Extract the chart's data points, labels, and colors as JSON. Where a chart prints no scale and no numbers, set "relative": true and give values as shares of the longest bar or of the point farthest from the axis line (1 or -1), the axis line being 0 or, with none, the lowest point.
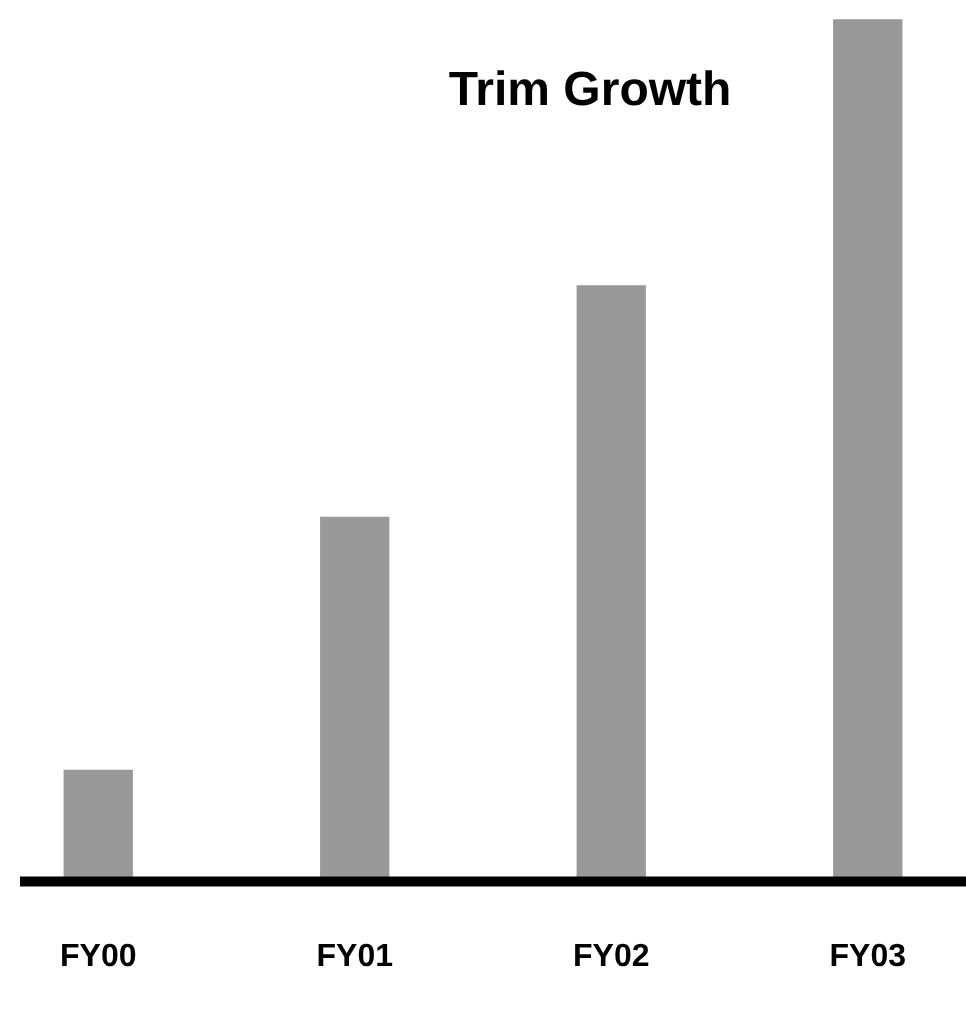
{
  "chart_data": {
    "type": "bar",
    "title": "Trim Growth",
    "categories": [
      "FY00",
      "FY01",
      "FY02",
      "FY03"
    ],
    "values": [
      0.125,
      0.42,
      0.69,
      1
    ],
    "color": "#999999",
    "relative": true,
    "grid": false,
    "legend": false
  }
}
